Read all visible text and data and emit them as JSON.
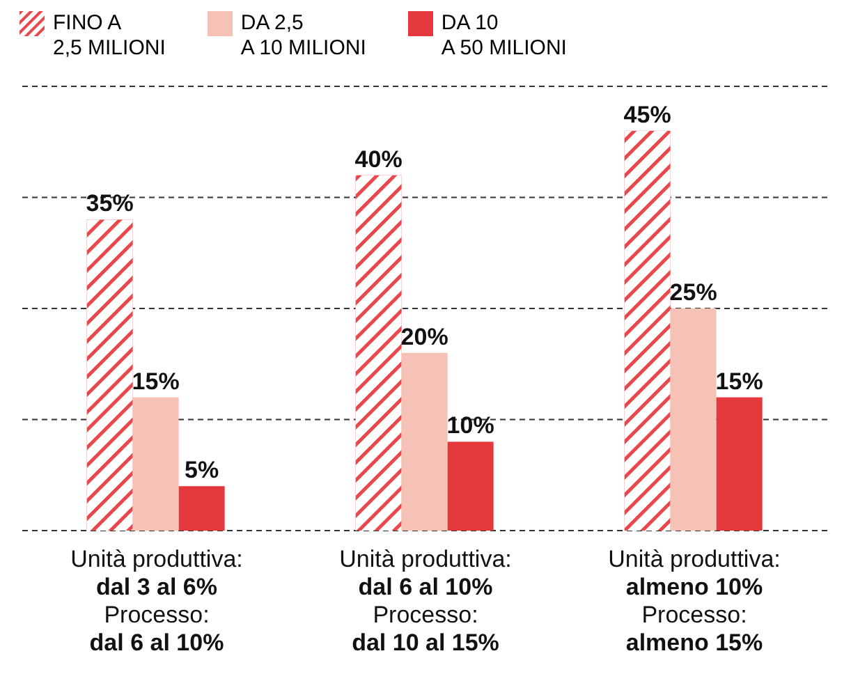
{
  "chart_data": {
    "type": "bar",
    "categories": [
      "Unità produttiva:\ndal 3 al 6%\nProcesso:\ndal 6 al 10%",
      "Unità produttiva:\ndal 6 al 10%\nProcesso:\ndal 10 al 15%",
      "Unità produttiva:\nalmeno 10%\nProcesso:\nalmeno 15%"
    ],
    "series": [
      {
        "name": "FINO A\n2,5 MILIONI",
        "color": "#e8484c",
        "values": [
          35,
          40,
          45
        ],
        "value_labels": [
          "35%",
          "40%",
          "45%"
        ]
      },
      {
        "name": "DA 2,5\nA 10 MILIONI",
        "color": "#f7c2b6",
        "values": [
          15,
          20,
          25
        ],
        "value_labels": [
          "15%",
          "20%",
          "25%"
        ]
      },
      {
        "name": "DA 10\nA 50 MILIONI",
        "color": "#e5383d",
        "values": [
          5,
          10,
          15
        ],
        "value_labels": [
          "5%",
          "10%",
          "15%"
        ]
      }
    ],
    "ylim": [
      0,
      50
    ],
    "yticks": [
      {
        "value": 0,
        "label": null
      },
      {
        "value": 12.5,
        "label": null
      },
      {
        "value": 25,
        "label": null
      },
      {
        "value": 37.5,
        "label": null
      },
      {
        "value": 50,
        "label": null
      }
    ],
    "grid": "y",
    "legend": "top",
    "tick_labels": "x"
  }
}
